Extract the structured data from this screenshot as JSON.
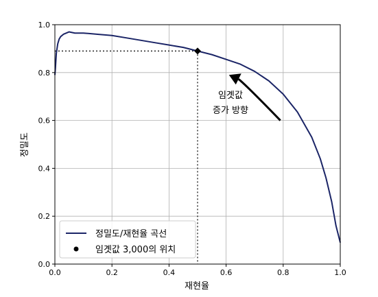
{
  "chart_data": {
    "type": "line",
    "xlabel": "재현율",
    "ylabel": "정밀도",
    "xlim": [
      0.0,
      1.0
    ],
    "ylim": [
      0.0,
      1.0
    ],
    "xticks": [
      "0.0",
      "0.2",
      "0.4",
      "0.6",
      "0.8",
      "1.0"
    ],
    "yticks": [
      "0.0",
      "0.2",
      "0.4",
      "0.6",
      "0.8",
      "1.0"
    ],
    "grid": true,
    "legend_position": "lower-left",
    "series": [
      {
        "name": "정밀도/재현율 곡선",
        "color": "#1a2466",
        "x": [
          0.0,
          0.002,
          0.005,
          0.01,
          0.015,
          0.02,
          0.03,
          0.05,
          0.07,
          0.1,
          0.15,
          0.2,
          0.25,
          0.3,
          0.35,
          0.4,
          0.45,
          0.5,
          0.55,
          0.6,
          0.65,
          0.7,
          0.75,
          0.8,
          0.85,
          0.9,
          0.93,
          0.95,
          0.97,
          0.985,
          1.0
        ],
        "y": [
          0.79,
          0.82,
          0.88,
          0.92,
          0.94,
          0.95,
          0.96,
          0.97,
          0.965,
          0.965,
          0.96,
          0.955,
          0.945,
          0.935,
          0.925,
          0.915,
          0.905,
          0.89,
          0.875,
          0.855,
          0.835,
          0.805,
          0.765,
          0.71,
          0.635,
          0.53,
          0.44,
          0.36,
          0.26,
          0.16,
          0.09
        ]
      }
    ],
    "threshold_point": {
      "label": "임곗값 3,000의 위치",
      "x": 0.5,
      "y": 0.89
    },
    "annotation": {
      "text_lines": [
        "임곗값",
        "증가 방향"
      ],
      "arrow_from": [
        0.79,
        0.6
      ],
      "arrow_to": [
        0.61,
        0.79
      ]
    }
  }
}
